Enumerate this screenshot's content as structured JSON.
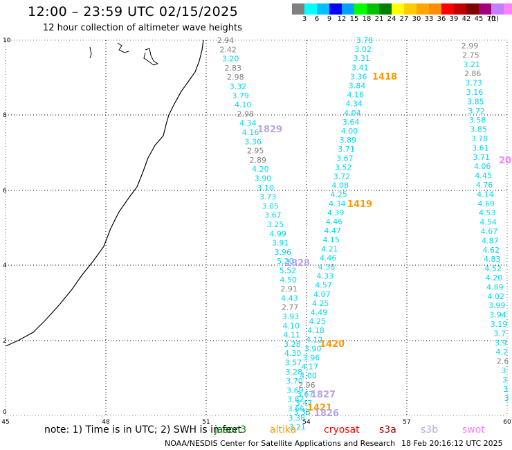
{
  "header": {
    "title": "12:00 – 23:59 UTC 02/15/2025",
    "subtitle": "12 hour collection of altimeter wave heights"
  },
  "legend": {
    "colors": [
      "#808080",
      "#00ffff",
      "#00bfff",
      "#0000ff",
      "#00a0ff",
      "#00ff00",
      "#00c000",
      "#008000",
      "#ffff00",
      "#ffcc00",
      "#ffa500",
      "#ff8c00",
      "#ff0000",
      "#c00000",
      "#800000",
      "#a0007a",
      "#c080ff",
      "#ff80ff",
      "#000000"
    ],
    "ticks": [
      "3",
      "6",
      "9",
      "12",
      "15",
      "18",
      "21",
      "24",
      "27",
      "30",
      "33",
      "36",
      "39",
      "42",
      "45",
      "70"
    ],
    "unit": "(ft)"
  },
  "axes": {
    "x_ticks": [
      "45",
      "48",
      "51",
      "54",
      "57",
      "60"
    ],
    "y_ticks": [
      "10",
      "8",
      "6",
      "4",
      "2",
      "0"
    ]
  },
  "passes": [
    {
      "id": "1829",
      "color": "#b9a4e6",
      "series": "s3b",
      "values": [
        "2.94",
        "2.42",
        "3.20",
        "2.83",
        "2.98",
        "3.32",
        "3.79",
        "4.10",
        "2.98",
        "4.34",
        "4.16",
        "3.36",
        "2.95",
        "2.89",
        "4.20",
        "3.90",
        "3.10",
        "3.73",
        "3.05",
        "3.67",
        "3.25",
        "4.99",
        "3.91",
        "3.96",
        "5.20",
        "5.52",
        "4.50",
        "2.91",
        "4.43",
        "2.77",
        "3.93",
        "4.10",
        "4.11",
        "3.28",
        "4.30",
        "3.57",
        "3.28",
        "3.70",
        "3.69",
        "3.82",
        "3.66",
        "3.38",
        "3.21"
      ]
    },
    {
      "id": "1418",
      "color": "#ff9900",
      "series": "altika",
      "values": [
        "3.78",
        "3.02",
        "3.31",
        "3.41",
        "3.36",
        "3.84",
        "4.16",
        "4.34",
        "4.04",
        "3.64",
        "4.00",
        "3.89",
        "3.71",
        "3.67",
        "3.52",
        "3.72",
        "4.08",
        "4.25",
        "4.34",
        "4.39",
        "4.46",
        "4.47",
        "4.15",
        "4.21",
        "4.46",
        "4.38",
        "4.33",
        "4.57",
        "4.07",
        "4.25",
        "4.49",
        "4.25",
        "4.18",
        "4.12",
        "3.90",
        "3.96",
        "4.17",
        "4.00",
        "2.96",
        "3.67",
        "3.47",
        "3.38"
      ]
    },
    {
      "id": "1828",
      "color": "#b9a4e6",
      "series": "s3b",
      "values": []
    },
    {
      "id": "1419",
      "color": "#ff9900",
      "series": "altika",
      "values": []
    },
    {
      "id": "1420",
      "color": "#ff9900",
      "series": "altika",
      "values": []
    },
    {
      "id": "1827",
      "color": "#b9a4e6",
      "series": "s3b",
      "values": []
    },
    {
      "id": "1421",
      "color": "#ff9900",
      "series": "altika",
      "values": []
    },
    {
      "id": "1826",
      "color": "#b9a4e6",
      "series": "s3b",
      "values": []
    },
    {
      "id": "20",
      "color": "#ff80ff",
      "series": "swot",
      "values": [
        "2.99",
        "2.75",
        "3.21",
        "2.86",
        "3.73",
        "3.16",
        "3.85",
        "3.72",
        "3.58",
        "3.85",
        "3.78",
        "3.61",
        "3.71",
        "4.06",
        "4.45",
        "4.76",
        "4.14",
        "4.69",
        "4.53",
        "4.54",
        "4.67",
        "4.87",
        "4.62",
        "4.83",
        "4.52",
        "4.20",
        "4.89",
        "4.02",
        "3.99",
        "3.94",
        "3.19",
        "3.7",
        "3.9",
        "4.2",
        "2.6",
        "3",
        "3",
        "3",
        "3"
      ]
    }
  ],
  "footer": {
    "note": "note:  1) Time is in UTC;  2) SWH is in feet",
    "satellites": [
      {
        "name": "jason3",
        "color": "#008000"
      },
      {
        "name": "altika",
        "color": "#ff9900"
      },
      {
        "name": "cryosat",
        "color": "#ff0000"
      },
      {
        "name": "s3a",
        "color": "#a00000"
      },
      {
        "name": "s3b",
        "color": "#b9a4e6"
      },
      {
        "name": "swot",
        "color": "#ff80ff"
      }
    ],
    "credit": "NOAA/NESDIS Center for Satellite Applications and Research",
    "timestamp": "18 Feb 20:16:12 UTC 2025"
  }
}
